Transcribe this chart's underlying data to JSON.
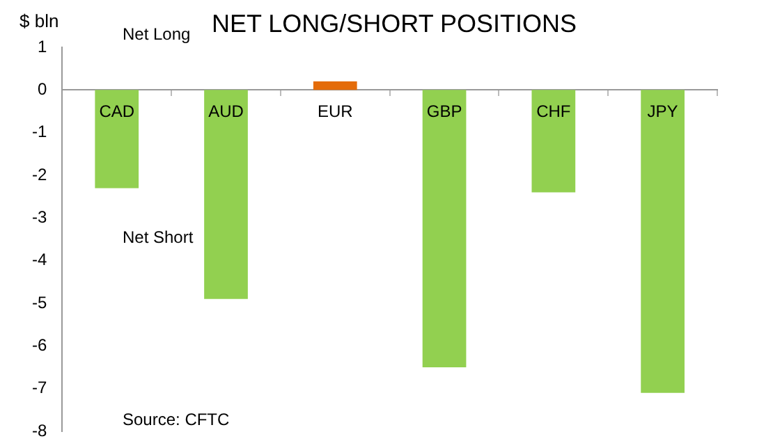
{
  "chart_data": {
    "type": "bar",
    "title": "NET LONG/SHORT POSITIONS",
    "ylabel": "$ bln",
    "categories": [
      "CAD",
      "AUD",
      "EUR",
      "GBP",
      "CHF",
      "JPY"
    ],
    "values": [
      -2.3,
      -4.9,
      0.2,
      -6.5,
      -2.4,
      -7.1
    ],
    "colors": [
      "#92d050",
      "#92d050",
      "#e46c0a",
      "#92d050",
      "#92d050",
      "#92d050"
    ],
    "ylim": [
      -8,
      1
    ],
    "yticks": [
      1,
      0,
      -1,
      -2,
      -3,
      -4,
      -5,
      -6,
      -7,
      -8
    ],
    "grid": false,
    "legend": false,
    "annotations": [
      "Net Long",
      "Net Short",
      "Source: CFTC"
    ]
  }
}
